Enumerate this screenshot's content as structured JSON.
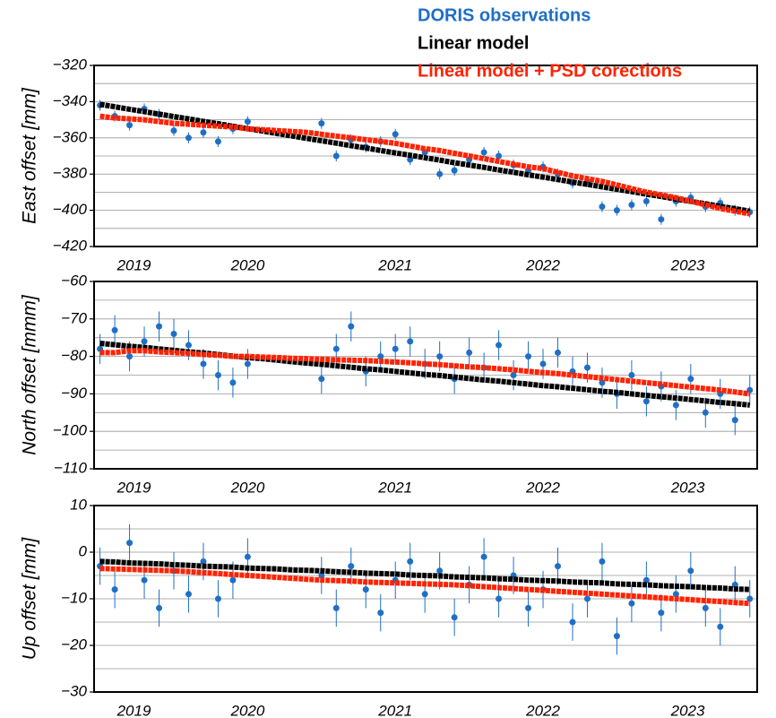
{
  "chart_data": [
    {
      "type": "scatter",
      "y_label": "East offset [mm]",
      "x": [
        2019.5,
        2019.6,
        2019.7,
        2019.8,
        2019.9,
        2020.0,
        2020.1,
        2020.2,
        2020.3,
        2020.4,
        2020.5,
        2020.6,
        2020.7,
        2020.8,
        2020.9,
        2021.0,
        2021.1,
        2021.2,
        2021.3,
        2021.4,
        2021.5,
        2021.6,
        2021.7,
        2021.8,
        2021.9,
        2022.0,
        2022.1,
        2022.2,
        2022.3,
        2022.4,
        2022.5,
        2022.6,
        2022.7,
        2022.8,
        2022.9,
        2023.0,
        2023.1,
        2023.2,
        2023.3,
        2023.4,
        2023.5,
        2023.6,
        2023.7,
        2023.8,
        2023.9
      ],
      "xlim": [
        2019.46,
        2023.95
      ],
      "xticks": [
        {
          "value": 2019.73,
          "label": "2019"
        },
        {
          "value": 2020.5,
          "label": "2020"
        },
        {
          "value": 2021.5,
          "label": "2021"
        },
        {
          "value": 2022.5,
          "label": "2022"
        },
        {
          "value": 2023.48,
          "label": "2023"
        }
      ],
      "ylim": [
        -420,
        -320
      ],
      "yticks": [
        {
          "value": -420,
          "label": "−420"
        },
        {
          "value": -400,
          "label": "−400"
        },
        {
          "value": -380,
          "label": "−380"
        },
        {
          "value": -360,
          "label": "−360"
        },
        {
          "value": -340,
          "label": "−340"
        },
        {
          "value": -320,
          "label": "−320"
        }
      ],
      "yminorticks": [
        -410,
        -390,
        -370,
        -350,
        -330
      ],
      "grid": true,
      "legend": "top-right",
      "series": [
        {
          "name": "DORIS observations",
          "color": "#1f6fc6",
          "values": [
            -342,
            -348,
            -353,
            -344,
            -347,
            -356,
            -360,
            -357,
            -362,
            -355,
            -351,
            null,
            null,
            null,
            null,
            -352,
            -370,
            -361,
            -365,
            -362,
            -358,
            -372,
            -368,
            -380,
            -378,
            -372,
            -368,
            -370,
            -375,
            -378,
            -376,
            -380,
            -385,
            -384,
            -398,
            -400,
            -397,
            -395,
            -405,
            -395,
            -393,
            -398,
            -396,
            -400,
            -401
          ],
          "errors": [
            3,
            3,
            3,
            3,
            3,
            3,
            3,
            3,
            3,
            3,
            3,
            null,
            null,
            null,
            null,
            3,
            3,
            3,
            3,
            3,
            3,
            3,
            3,
            3,
            3,
            3,
            3,
            3,
            3,
            3,
            3,
            3,
            3,
            3,
            3,
            3,
            3,
            3,
            3,
            3,
            3,
            3,
            3,
            3,
            3
          ]
        },
        {
          "name": "Linear model",
          "color": "#000000",
          "values": [
            -341.5,
            -342.8,
            -344.2,
            -345.5,
            -346.9,
            -348.2,
            -349.5,
            -350.9,
            -352.2,
            -353.6,
            -354.9,
            -356.2,
            -357.6,
            -358.9,
            -360.3,
            -361.6,
            -362.9,
            -364.3,
            -365.6,
            -367.0,
            -368.3,
            -369.6,
            -371.0,
            -372.3,
            -373.7,
            -375.0,
            -376.3,
            -377.7,
            -379.0,
            -380.4,
            -381.7,
            -383.0,
            -384.4,
            -385.7,
            -387.1,
            -388.4,
            -389.7,
            -391.1,
            -392.4,
            -393.8,
            -395.1,
            -396.4,
            -397.8,
            -399.1,
            -400.5
          ]
        },
        {
          "name": "Linear model + PSD corections",
          "color": "#ff2200",
          "values": [
            -348,
            -349,
            -349.5,
            -350,
            -351,
            -352,
            -352.5,
            -353,
            -353.5,
            -354,
            -355,
            -355.5,
            -356,
            -356.5,
            -357,
            -358,
            -359,
            -360,
            -361,
            -362,
            -363,
            -364.5,
            -366,
            -367,
            -368.5,
            -370,
            -371.5,
            -373,
            -374.5,
            -376,
            -377,
            -379,
            -381,
            -382.5,
            -384,
            -386,
            -388,
            -390,
            -391.5,
            -393,
            -395,
            -397,
            -399,
            -400.5,
            -402
          ]
        }
      ]
    },
    {
      "type": "scatter",
      "y_label": "North offset [mmm]",
      "x": [
        2019.5,
        2019.6,
        2019.7,
        2019.8,
        2019.9,
        2020.0,
        2020.1,
        2020.2,
        2020.3,
        2020.4,
        2020.5,
        2020.6,
        2020.7,
        2020.8,
        2020.9,
        2021.0,
        2021.1,
        2021.2,
        2021.3,
        2021.4,
        2021.5,
        2021.6,
        2021.7,
        2021.8,
        2021.9,
        2022.0,
        2022.1,
        2022.2,
        2022.3,
        2022.4,
        2022.5,
        2022.6,
        2022.7,
        2022.8,
        2022.9,
        2023.0,
        2023.1,
        2023.2,
        2023.3,
        2023.4,
        2023.5,
        2023.6,
        2023.7,
        2023.8,
        2023.9
      ],
      "xlim": [
        2019.46,
        2023.95
      ],
      "xticks": [
        {
          "value": 2019.73,
          "label": "2019"
        },
        {
          "value": 2020.5,
          "label": "2020"
        },
        {
          "value": 2021.5,
          "label": "2021"
        },
        {
          "value": 2022.5,
          "label": "2022"
        },
        {
          "value": 2023.48,
          "label": "2023"
        }
      ],
      "ylim": [
        -110,
        -60
      ],
      "yticks": [
        {
          "value": -110,
          "label": "−110"
        },
        {
          "value": -100,
          "label": "−100"
        },
        {
          "value": -90,
          "label": "−90"
        },
        {
          "value": -80,
          "label": "−80"
        },
        {
          "value": -70,
          "label": "−70"
        },
        {
          "value": -60,
          "label": "−60"
        }
      ],
      "yminorticks": [
        -105,
        -95,
        -85,
        -75,
        -65
      ],
      "grid": true,
      "series": [
        {
          "color": "#1f6fc6",
          "values": [
            -78,
            -73,
            -80,
            -76,
            -72,
            -74,
            -77,
            -82,
            -85,
            -87,
            -82,
            null,
            null,
            null,
            null,
            -86,
            -78,
            -72,
            -84,
            -80,
            -78,
            -76,
            -82,
            -80,
            -86,
            -79,
            -83,
            -77,
            -85,
            -80,
            -82,
            -79,
            -84,
            -83,
            -87,
            -90,
            -85,
            -92,
            -88,
            -93,
            -86,
            -95,
            -90,
            -97,
            -89
          ],
          "errors": [
            4,
            4,
            4,
            4,
            4,
            4,
            4,
            4,
            4,
            4,
            4,
            null,
            null,
            null,
            null,
            4,
            4,
            4,
            4,
            4,
            4,
            4,
            4,
            4,
            4,
            4,
            4,
            4,
            4,
            4,
            4,
            4,
            4,
            4,
            4,
            4,
            4,
            4,
            4,
            4,
            4,
            4,
            4,
            4,
            4
          ]
        },
        {
          "color": "#000000",
          "values": [
            -76.5,
            -76.9,
            -77.3,
            -77.6,
            -78.0,
            -78.4,
            -78.8,
            -79.1,
            -79.5,
            -79.9,
            -80.3,
            -80.6,
            -81.0,
            -81.4,
            -81.8,
            -82.1,
            -82.5,
            -82.9,
            -83.3,
            -83.6,
            -84.0,
            -84.4,
            -84.8,
            -85.1,
            -85.5,
            -85.9,
            -86.3,
            -86.6,
            -87.0,
            -87.4,
            -87.8,
            -88.1,
            -88.5,
            -88.9,
            -89.3,
            -89.6,
            -90.0,
            -90.4,
            -90.8,
            -91.1,
            -91.5,
            -91.9,
            -92.3,
            -92.6,
            -93.0
          ]
        },
        {
          "color": "#ff2200",
          "values": [
            -79,
            -79,
            -78.5,
            -78.5,
            -78.8,
            -79,
            -79.2,
            -79.5,
            -79.7,
            -80,
            -80,
            -80.2,
            -80.3,
            -80.5,
            -80.6,
            -80.8,
            -80.9,
            -81,
            -81.1,
            -81.3,
            -81.5,
            -81.7,
            -82,
            -82.2,
            -82.5,
            -82.8,
            -83,
            -83.3,
            -83.6,
            -84,
            -84.3,
            -84.6,
            -85,
            -85.4,
            -85.8,
            -86.2,
            -86.6,
            -87,
            -87.4,
            -87.8,
            -88.2,
            -88.6,
            -89,
            -89.5,
            -90
          ]
        }
      ]
    },
    {
      "type": "scatter",
      "y_label": "Up offset [mm]",
      "x": [
        2019.5,
        2019.6,
        2019.7,
        2019.8,
        2019.9,
        2020.0,
        2020.1,
        2020.2,
        2020.3,
        2020.4,
        2020.5,
        2020.6,
        2020.7,
        2020.8,
        2020.9,
        2021.0,
        2021.1,
        2021.2,
        2021.3,
        2021.4,
        2021.5,
        2021.6,
        2021.7,
        2021.8,
        2021.9,
        2022.0,
        2022.1,
        2022.2,
        2022.3,
        2022.4,
        2022.5,
        2022.6,
        2022.7,
        2022.8,
        2022.9,
        2023.0,
        2023.1,
        2023.2,
        2023.3,
        2023.4,
        2023.5,
        2023.6,
        2023.7,
        2023.8,
        2023.9
      ],
      "xlim": [
        2019.46,
        2023.95
      ],
      "xticks": [
        {
          "value": 2019.73,
          "label": "2019"
        },
        {
          "value": 2020.5,
          "label": "2020"
        },
        {
          "value": 2021.5,
          "label": "2021"
        },
        {
          "value": 2022.5,
          "label": "2022"
        },
        {
          "value": 2023.48,
          "label": "2023"
        }
      ],
      "ylim": [
        -30,
        10
      ],
      "yticks": [
        {
          "value": -30,
          "label": "−30"
        },
        {
          "value": -20,
          "label": "−20"
        },
        {
          "value": -10,
          "label": "−10"
        },
        0,
        10
      ],
      "yminorticks": [
        -25,
        -15,
        -5,
        5
      ],
      "grid": true,
      "series": [
        {
          "color": "#1f6fc6",
          "values": [
            -3,
            -8,
            2,
            -6,
            -12,
            -4,
            -9,
            -2,
            -10,
            -6,
            -1,
            null,
            null,
            null,
            null,
            -5,
            -12,
            -3,
            -8,
            -13,
            -6,
            -2,
            -9,
            -4,
            -14,
            -7,
            -1,
            -10,
            -5,
            -12,
            -8,
            -3,
            -15,
            -10,
            -2,
            -18,
            -11,
            -6,
            -13,
            -9,
            -4,
            -12,
            -16,
            -7,
            -10
          ],
          "errors": [
            4,
            4,
            4,
            4,
            4,
            4,
            4,
            4,
            4,
            4,
            4,
            null,
            null,
            null,
            null,
            4,
            4,
            4,
            4,
            4,
            4,
            4,
            4,
            4,
            4,
            4,
            4,
            4,
            4,
            4,
            4,
            4,
            4,
            4,
            4,
            4,
            4,
            4,
            4,
            4,
            4,
            4,
            4,
            4,
            4
          ]
        },
        {
          "color": "#000000",
          "values": [
            -2.0,
            -2.1,
            -2.3,
            -2.4,
            -2.5,
            -2.7,
            -2.8,
            -3.0,
            -3.1,
            -3.2,
            -3.4,
            -3.5,
            -3.6,
            -3.8,
            -3.9,
            -4.0,
            -4.2,
            -4.3,
            -4.5,
            -4.6,
            -4.7,
            -4.9,
            -5.0,
            -5.1,
            -5.3,
            -5.4,
            -5.5,
            -5.7,
            -5.8,
            -6.0,
            -6.1,
            -6.2,
            -6.4,
            -6.5,
            -6.6,
            -6.8,
            -6.9,
            -7.0,
            -7.2,
            -7.3,
            -7.4,
            -7.6,
            -7.7,
            -7.9,
            -8.0
          ]
        },
        {
          "color": "#ff2200",
          "values": [
            -3.5,
            -3.6,
            -3.7,
            -3.8,
            -3.9,
            -4.0,
            -4.2,
            -4.4,
            -4.6,
            -4.8,
            -5.0,
            -5.2,
            -5.4,
            -5.6,
            -5.8,
            -6.0,
            -6.1,
            -6.2,
            -6.4,
            -6.5,
            -6.6,
            -6.7,
            -6.8,
            -6.9,
            -7.0,
            -7.2,
            -7.4,
            -7.6,
            -7.8,
            -8.0,
            -8.2,
            -8.4,
            -8.6,
            -8.8,
            -9.0,
            -9.2,
            -9.4,
            -9.6,
            -9.8,
            -10.0,
            -10.2,
            -10.4,
            -10.6,
            -10.8,
            -11.0
          ]
        }
      ]
    }
  ]
}
